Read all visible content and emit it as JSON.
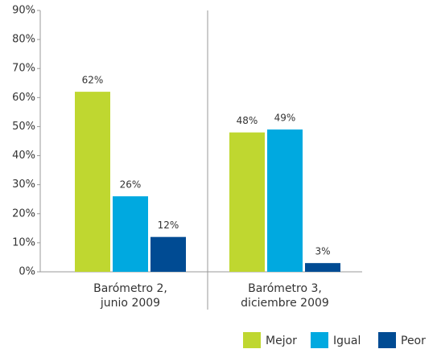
{
  "chart_data": {
    "type": "bar",
    "categories": [
      [
        "Barómetro 2,",
        "junio 2009"
      ],
      [
        "Barómetro 3,",
        "diciembre 2009"
      ]
    ],
    "series": [
      {
        "name": "Mejor",
        "color": "#bfd730",
        "values": [
          62,
          48
        ],
        "value_labels": [
          "62%",
          "48%"
        ]
      },
      {
        "name": "Igual",
        "color": "#00a9e0",
        "values": [
          26,
          49
        ],
        "value_labels": [
          "26%",
          "49%"
        ]
      },
      {
        "name": "Peor",
        "color": "#004b93",
        "values": [
          12,
          3
        ],
        "value_labels": [
          "12%",
          "3%"
        ]
      }
    ],
    "ylim": [
      0,
      90
    ],
    "yticks": [
      {
        "value": 0,
        "label": "0%"
      },
      {
        "value": 10,
        "label": "10%"
      },
      {
        "value": 20,
        "label": "20%"
      },
      {
        "value": 30,
        "label": "30%"
      },
      {
        "value": 40,
        "label": "40%"
      },
      {
        "value": 50,
        "label": "50%"
      },
      {
        "value": 60,
        "label": "60%"
      },
      {
        "value": 70,
        "label": "70%"
      },
      {
        "value": 80,
        "label": "80%"
      },
      {
        "value": 90,
        "label": "90%"
      }
    ],
    "legend": "bottom-right"
  }
}
